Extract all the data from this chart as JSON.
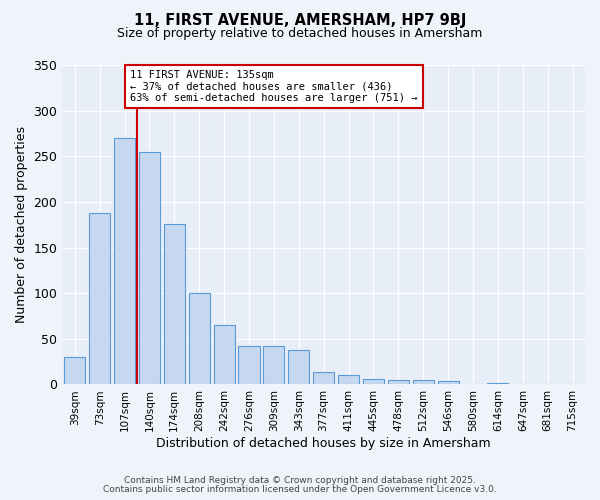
{
  "title": "11, FIRST AVENUE, AMERSHAM, HP7 9BJ",
  "subtitle": "Size of property relative to detached houses in Amersham",
  "xlabel": "Distribution of detached houses by size in Amersham",
  "ylabel": "Number of detached properties",
  "bar_labels": [
    "39sqm",
    "73sqm",
    "107sqm",
    "140sqm",
    "174sqm",
    "208sqm",
    "242sqm",
    "276sqm",
    "309sqm",
    "343sqm",
    "377sqm",
    "411sqm",
    "445sqm",
    "478sqm",
    "512sqm",
    "546sqm",
    "580sqm",
    "614sqm",
    "647sqm",
    "681sqm",
    "715sqm"
  ],
  "bar_values": [
    30,
    188,
    270,
    255,
    176,
    100,
    65,
    42,
    42,
    38,
    14,
    10,
    6,
    5,
    5,
    4,
    1,
    2,
    1,
    1,
    1
  ],
  "bar_color": "#c5d8f0",
  "bar_edge_color": "#5b9bd5",
  "vline_color": "#cc0000",
  "ylim": [
    0,
    350
  ],
  "yticks": [
    0,
    50,
    100,
    150,
    200,
    250,
    300,
    350
  ],
  "annotation_title": "11 FIRST AVENUE: 135sqm",
  "annotation_line1": "← 37% of detached houses are smaller (436)",
  "annotation_line2": "63% of semi-detached houses are larger (751) →",
  "annotation_box_color": "#ffffff",
  "annotation_box_edge": "#cc0000",
  "footer1": "Contains HM Land Registry data © Crown copyright and database right 2025.",
  "footer2": "Contains public sector information licensed under the Open Government Licence v3.0.",
  "bg_color": "#f0f4fa",
  "plot_bg_color": "#e8eef8"
}
